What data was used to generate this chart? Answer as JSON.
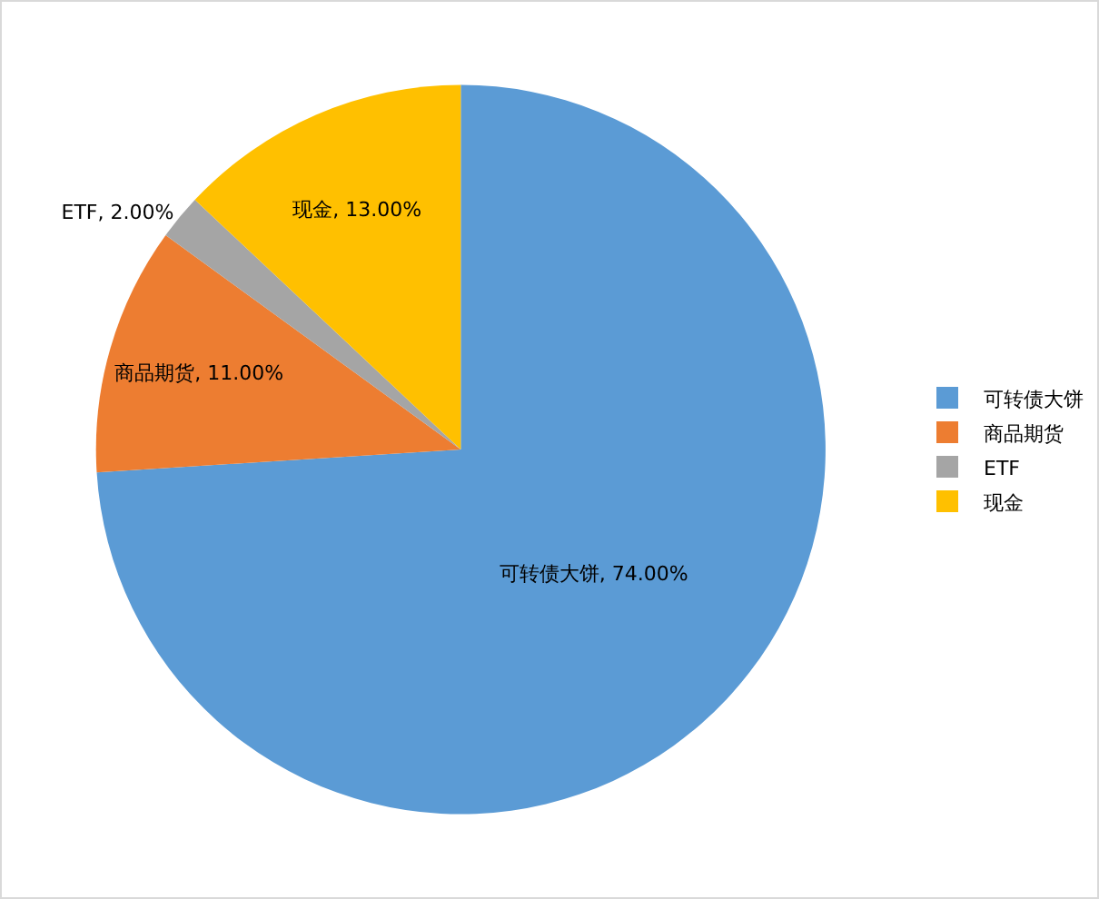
{
  "chart_data": {
    "type": "pie",
    "categories": [
      "可转债大饼",
      "商品期货",
      "ETF",
      "现金"
    ],
    "values": [
      74,
      11,
      2,
      13
    ],
    "colors": [
      "#5b9bd5",
      "#ed7d31",
      "#a5a5a5",
      "#ffc000"
    ],
    "value_labels": [
      "可转债大饼, 74.00%",
      "商品期货, 11.00%",
      "ETF, 2.00%",
      "现金, 13.00%"
    ],
    "legend": "right"
  }
}
